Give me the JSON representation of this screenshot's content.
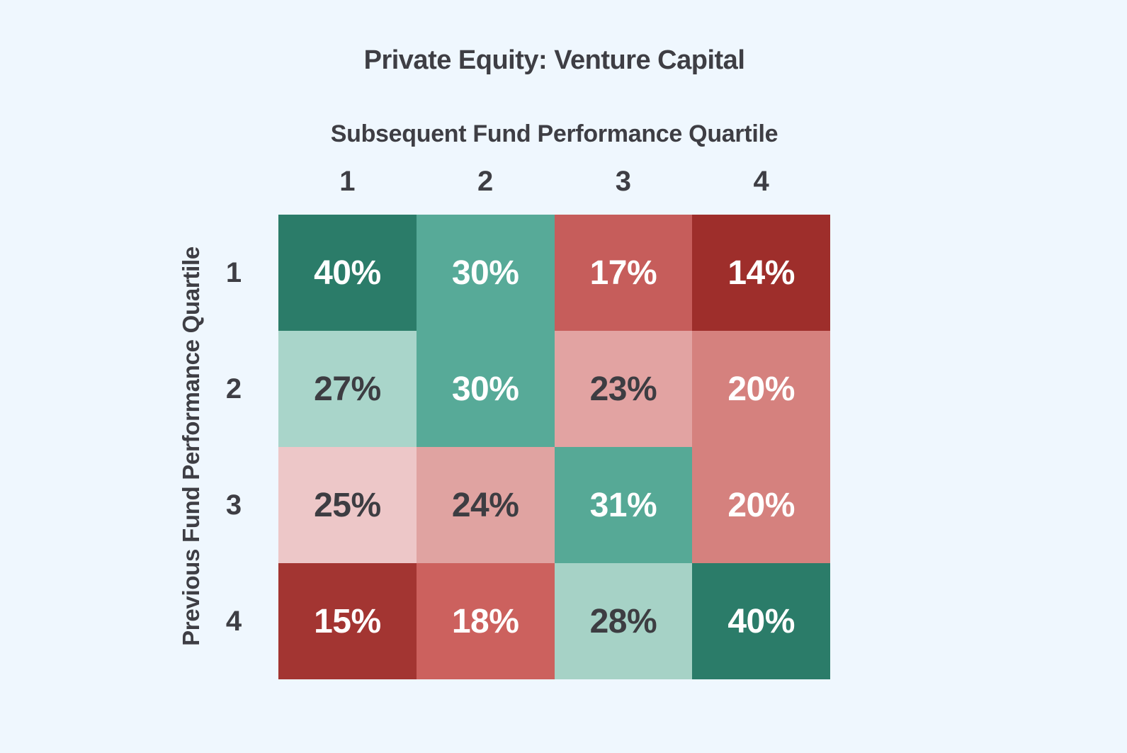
{
  "background_color": "#eff7fe",
  "text_color": "#3e3e44",
  "chart_data": {
    "type": "heatmap",
    "title": "Private Equity: Venture Capital",
    "xlabel": "Subsequent Fund Performance Quartile",
    "ylabel": "Previous Fund Performance Quartile",
    "x_categories": [
      "1",
      "2",
      "3",
      "4"
    ],
    "y_categories": [
      "1",
      "2",
      "3",
      "4"
    ],
    "values_percent": [
      [
        40,
        30,
        17,
        14
      ],
      [
        27,
        30,
        23,
        20
      ],
      [
        25,
        24,
        31,
        20
      ],
      [
        15,
        18,
        28,
        40
      ]
    ],
    "cells": [
      [
        {
          "label": "40%",
          "value": 40,
          "color": "#2b7c69",
          "text_color": "#ffffff"
        },
        {
          "label": "30%",
          "value": 30,
          "color": "#57aa98",
          "text_color": "#ffffff"
        },
        {
          "label": "17%",
          "value": 17,
          "color": "#c65d5b",
          "text_color": "#ffffff"
        },
        {
          "label": "14%",
          "value": 14,
          "color": "#9e2e2b",
          "text_color": "#ffffff"
        }
      ],
      [
        {
          "label": "27%",
          "value": 27,
          "color": "#a9d5ca",
          "text_color": "#3d3d42"
        },
        {
          "label": "30%",
          "value": 30,
          "color": "#57aa98",
          "text_color": "#ffffff"
        },
        {
          "label": "23%",
          "value": 23,
          "color": "#e2a3a2",
          "text_color": "#3d3d42"
        },
        {
          "label": "20%",
          "value": 20,
          "color": "#d5817e",
          "text_color": "#ffffff"
        }
      ],
      [
        {
          "label": "25%",
          "value": 25,
          "color": "#edc7c8",
          "text_color": "#3d3d42"
        },
        {
          "label": "24%",
          "value": 24,
          "color": "#e0a3a1",
          "text_color": "#3d3d42"
        },
        {
          "label": "31%",
          "value": 31,
          "color": "#56a996",
          "text_color": "#ffffff"
        },
        {
          "label": "20%",
          "value": 20,
          "color": "#d5817e",
          "text_color": "#ffffff"
        }
      ],
      [
        {
          "label": "15%",
          "value": 15,
          "color": "#a33532",
          "text_color": "#ffffff"
        },
        {
          "label": "18%",
          "value": 18,
          "color": "#cc615e",
          "text_color": "#ffffff"
        },
        {
          "label": "28%",
          "value": 28,
          "color": "#a6d2c6",
          "text_color": "#3d3d42"
        },
        {
          "label": "40%",
          "value": 40,
          "color": "#2b7c69",
          "text_color": "#ffffff"
        }
      ]
    ],
    "legend": "none",
    "grid": "off"
  }
}
